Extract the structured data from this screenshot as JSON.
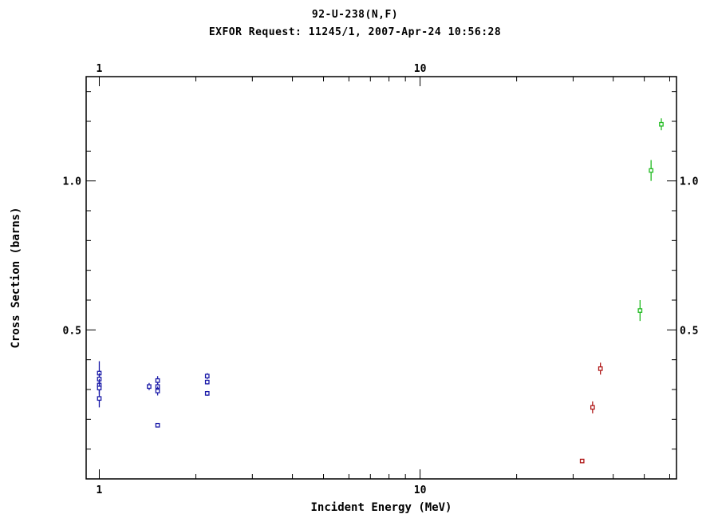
{
  "chart_data": {
    "type": "scatter",
    "title": "92-U-238(N,F)",
    "subtitle": "EXFOR Request: 11245/1, 2007-Apr-24 10:56:28",
    "xlabel": "Incident Energy (MeV)",
    "ylabel": "Cross Section (barns)",
    "x_scale": "log",
    "xlim": [
      0.91,
      63.0
    ],
    "ylim": [
      0.0,
      1.35
    ],
    "x_tick_labels": [
      "1",
      "10"
    ],
    "y_tick_labels": [
      "0.5",
      "1.0"
    ],
    "grid": false,
    "marker": "open-square",
    "series": [
      {
        "color": "#1a1aa8",
        "points": [
          {
            "x": 1.0,
            "y": 0.355,
            "err": 0.04
          },
          {
            "x": 1.0,
            "y": 0.335,
            "err": 0.02
          },
          {
            "x": 1.0,
            "y": 0.315,
            "err": 0.02
          },
          {
            "x": 1.0,
            "y": 0.305,
            "err": 0.02
          },
          {
            "x": 1.0,
            "y": 0.27,
            "err": 0.03
          },
          {
            "x": 1.43,
            "y": 0.31,
            "err": 0.012
          },
          {
            "x": 1.52,
            "y": 0.33,
            "err": 0.015
          },
          {
            "x": 1.52,
            "y": 0.31,
            "err": 0.015
          },
          {
            "x": 1.52,
            "y": 0.295,
            "err": 0.015
          },
          {
            "x": 1.52,
            "y": 0.18,
            "err": 0.005
          },
          {
            "x": 2.17,
            "y": 0.345,
            "err": 0.01
          },
          {
            "x": 2.17,
            "y": 0.325,
            "err": 0.008
          },
          {
            "x": 2.17,
            "y": 0.287,
            "err": 0.008
          }
        ]
      },
      {
        "color": "#b01818",
        "points": [
          {
            "x": 32.0,
            "y": 0.06,
            "err": 0.005
          },
          {
            "x": 34.5,
            "y": 0.24,
            "err": 0.02
          },
          {
            "x": 36.5,
            "y": 0.37,
            "err": 0.02
          }
        ]
      },
      {
        "color": "#22bb22",
        "points": [
          {
            "x": 48.5,
            "y": 0.565,
            "err": 0.035
          },
          {
            "x": 52.5,
            "y": 1.035,
            "err": 0.035
          },
          {
            "x": 56.5,
            "y": 1.19,
            "err": 0.02
          }
        ]
      }
    ]
  }
}
